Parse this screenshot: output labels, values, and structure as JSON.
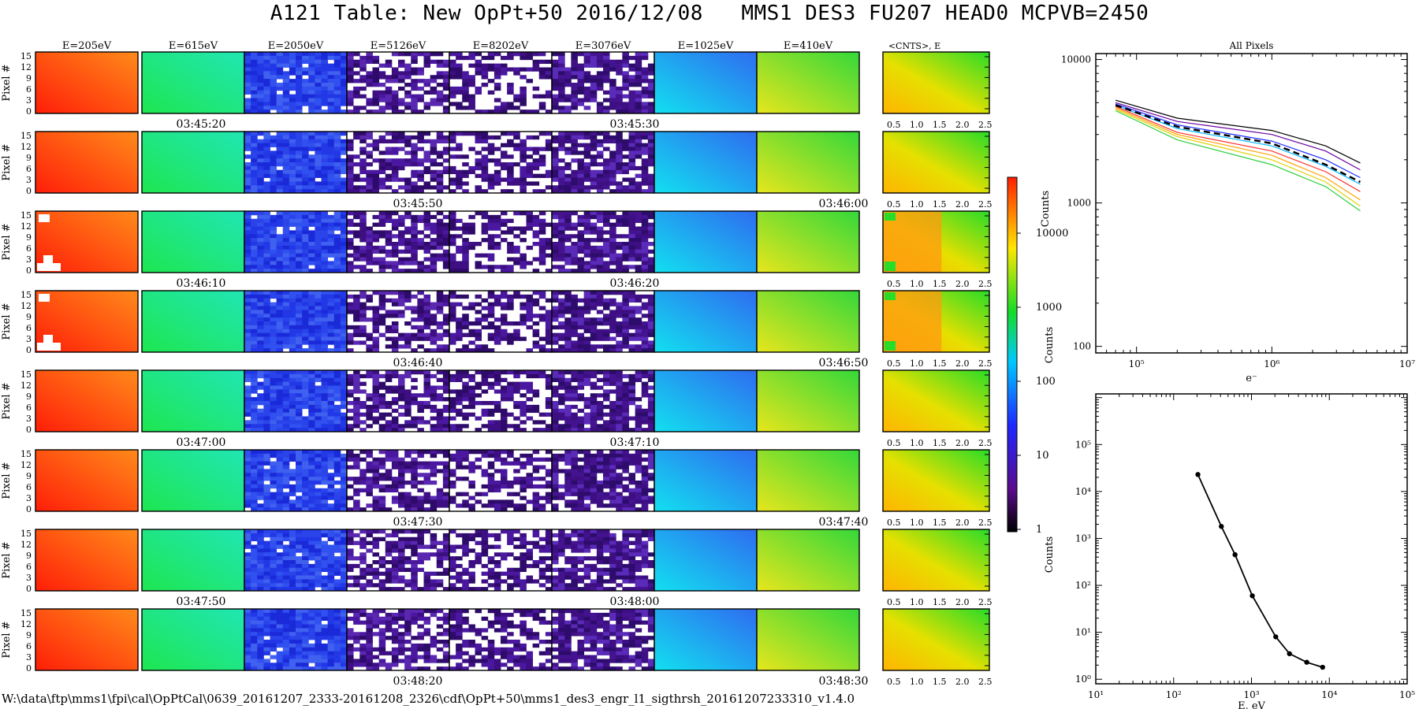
{
  "title": "A121 Table: New OpPt+50 2016/12/08   MMS1 DES3 FU207 HEAD0 MCPVB=2450",
  "footer_path": "W:\\data\\ftp\\mms1\\fpi\\cal\\OpPtCal\\0639_20161207_2333-20161208_2326\\cdf\\OpPt+50\\mms1_des3_engr_l1_sigthrsh_20161207233310_v1.4.0",
  "heatmap_grid": {
    "energy_headers": [
      "E=205eV",
      "E=615eV",
      "E=2050eV",
      "E=5126eV",
      "E=8202eV",
      "E=3076eV",
      "E=1025eV",
      "E=410eV"
    ],
    "ylabel": "Pixel #",
    "yticks": [
      "0",
      "3",
      "6",
      "9",
      "12",
      "15"
    ],
    "summary_header": "<CNTS>, E",
    "summary_xticks": [
      "0.5",
      "1.0",
      "1.5",
      "2.0",
      "2.5"
    ],
    "timestamps": [
      [
        "03:45:20",
        "03:45:30"
      ],
      [
        "03:45:50",
        "03:46:00"
      ],
      [
        "03:46:10",
        "03:46:20"
      ],
      [
        "03:46:40",
        "03:46:50"
      ],
      [
        "03:47:00",
        "03:47:10"
      ],
      [
        "03:47:30",
        "03:47:40"
      ],
      [
        "03:47:50",
        "03:48:00"
      ],
      [
        "03:48:20",
        "03:48:30"
      ]
    ]
  },
  "colorbar": {
    "label": "Counts",
    "ticks": [
      "1",
      "10",
      "100",
      "1000",
      "10000"
    ],
    "stops": [
      "#000000",
      "#5a0a8c",
      "#1e28ff",
      "#00c8ff",
      "#14dc28",
      "#ffe600",
      "#ff1e00"
    ]
  },
  "colors": {
    "e205": "#ff3a10",
    "e615": "#1ee65a",
    "e2050": "#2b3fe8",
    "e5126": "#3d0f82",
    "e8202": "#3d0f82",
    "e3076": "#44138f",
    "e1025": "#1ec8f0",
    "e410": "#86e632",
    "summary": "#e6e000"
  },
  "chart_data": [
    {
      "type": "line",
      "title": "All Pixels",
      "xlabel": "e⁻",
      "ylabel": "Counts",
      "xscale": "log",
      "yscale": "log",
      "xlim": [
        50000,
        10000000
      ],
      "ylim": [
        90,
        11000
      ],
      "xticks": [
        "10⁵",
        "10⁶",
        "10⁷"
      ],
      "yticks": [
        "100",
        "1000",
        "10000"
      ],
      "series": [
        {
          "x": [
            70000,
            200000,
            1000000,
            2500000,
            4500000
          ],
          "y": [
            5200,
            3900,
            3200,
            2500,
            1900
          ],
          "color": "#000000"
        },
        {
          "x": [
            70000,
            200000,
            1000000,
            2500000,
            4500000
          ],
          "y": [
            5000,
            3700,
            3000,
            2300,
            1700
          ],
          "color": "#6a00a0"
        },
        {
          "x": [
            70000,
            200000,
            1000000,
            2500000,
            4500000
          ],
          "y": [
            4900,
            3500,
            2700,
            2000,
            1500
          ],
          "color": "#2030ff"
        },
        {
          "x": [
            70000,
            200000,
            1000000,
            2500000,
            4500000
          ],
          "y": [
            4800,
            3300,
            2500,
            1800,
            1350
          ],
          "color": "#00b4ff"
        },
        {
          "x": [
            70000,
            200000,
            1000000,
            2500000,
            4500000
          ],
          "y": [
            4700,
            3100,
            2300,
            1650,
            1200
          ],
          "color": "#ff3030"
        },
        {
          "x": [
            70000,
            200000,
            1000000,
            2500000,
            4500000
          ],
          "y": [
            4600,
            3000,
            2150,
            1500,
            1050
          ],
          "color": "#ffa000"
        },
        {
          "x": [
            70000,
            200000,
            1000000,
            2500000,
            4500000
          ],
          "y": [
            4500,
            2900,
            2000,
            1400,
            950
          ],
          "color": "#e0d000"
        },
        {
          "x": [
            70000,
            200000,
            1000000,
            2500000,
            4500000
          ],
          "y": [
            4400,
            2750,
            1850,
            1300,
            880
          ],
          "color": "#30d040"
        },
        {
          "x": [
            70000,
            200000,
            1000000,
            2500000,
            4500000
          ],
          "y": [
            4800,
            3400,
            2600,
            1850,
            1400
          ],
          "color": "#000000",
          "dashed": true
        }
      ]
    },
    {
      "type": "line",
      "xlabel": "E, eV",
      "ylabel": "Counts",
      "xscale": "log",
      "yscale": "log",
      "xlim": [
        10,
        100000
      ],
      "ylim": [
        0.8,
        1200000
      ],
      "xticks": [
        "10¹",
        "10²",
        "10³",
        "10⁴",
        "10⁵"
      ],
      "yticks": [
        "10⁰",
        "10¹",
        "10²",
        "10³",
        "10⁴",
        "10⁵"
      ],
      "x": [
        205,
        410,
        615,
        1025,
        2050,
        3076,
        5126,
        8202
      ],
      "y": [
        23000,
        1800,
        450,
        60,
        8,
        3.5,
        2.3,
        1.8
      ]
    }
  ]
}
